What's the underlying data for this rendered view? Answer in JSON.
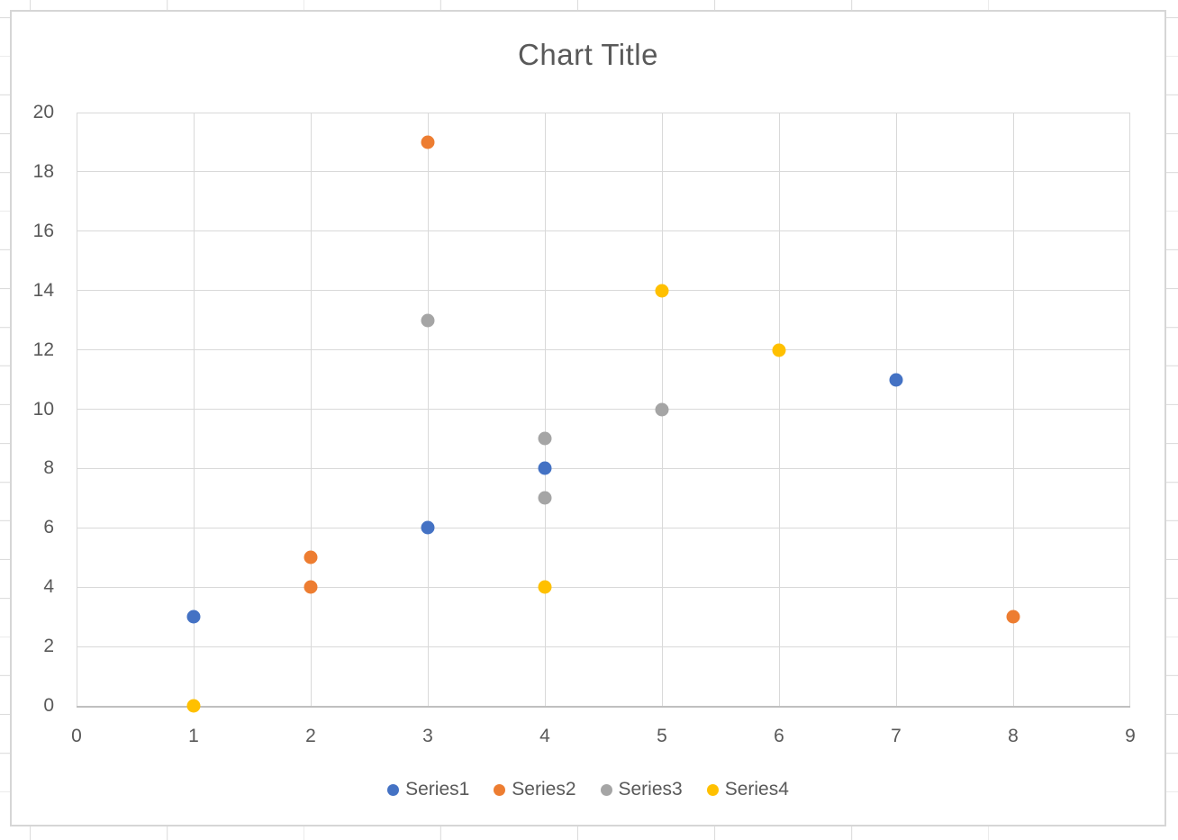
{
  "chart_data": {
    "type": "scatter",
    "title": "Chart Title",
    "xlabel": "",
    "ylabel": "",
    "xlim": [
      0,
      9
    ],
    "ylim": [
      0,
      20
    ],
    "x_ticks": [
      0,
      1,
      2,
      3,
      4,
      5,
      6,
      7,
      8,
      9
    ],
    "y_ticks": [
      0,
      2,
      4,
      6,
      8,
      10,
      12,
      14,
      16,
      18,
      20
    ],
    "grid": true,
    "legend_position": "bottom",
    "series": [
      {
        "name": "Series1",
        "color": "#4472C4",
        "points": [
          [
            1,
            3
          ],
          [
            3,
            6
          ],
          [
            4,
            8
          ],
          [
            7,
            11
          ]
        ]
      },
      {
        "name": "Series2",
        "color": "#ED7D31",
        "points": [
          [
            2,
            4
          ],
          [
            2,
            5
          ],
          [
            3,
            19
          ],
          [
            8,
            3
          ]
        ]
      },
      {
        "name": "Series3",
        "color": "#A5A5A5",
        "points": [
          [
            3,
            13
          ],
          [
            4,
            7
          ],
          [
            4,
            9
          ],
          [
            5,
            10
          ]
        ]
      },
      {
        "name": "Series4",
        "color": "#FFC000",
        "points": [
          [
            1,
            0
          ],
          [
            4,
            4
          ],
          [
            5,
            14
          ],
          [
            6,
            12
          ]
        ]
      }
    ]
  },
  "colors": {
    "text": "#595959",
    "gridline": "#D9D9D9",
    "axis_line": "#BFBFBF",
    "chart_border": "#D6D6D6",
    "sheet_gridline": "#DCDCDC",
    "background": "#FFFFFF"
  }
}
